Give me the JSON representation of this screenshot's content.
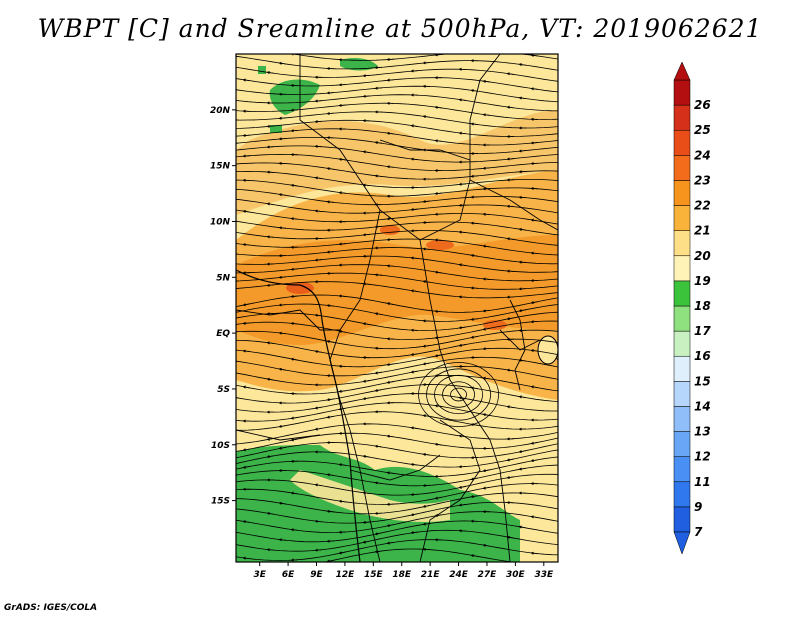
{
  "title": "WBPT [C] and Sreamline at 500hPa, VT: 2019062621",
  "credit": "GrADS: IGES/COLA",
  "map": {
    "lon_labels": [
      "3E",
      "6E",
      "9E",
      "12E",
      "15E",
      "18E",
      "21E",
      "24E",
      "27E",
      "30E",
      "33E"
    ],
    "lat_labels": [
      "20N",
      "15N",
      "10N",
      "5N",
      "EQ",
      "5S",
      "10S",
      "15S"
    ],
    "lon_values": [
      3,
      6,
      9,
      12,
      15,
      18,
      21,
      24,
      27,
      30,
      33
    ],
    "lat_values": [
      20,
      15,
      10,
      5,
      0,
      -5,
      -10,
      -15
    ],
    "lon_range": [
      0.5,
      34.5
    ],
    "lat_range": [
      -20.5,
      25
    ]
  },
  "colorbar": {
    "levels": [
      "7",
      "9",
      "11",
      "12",
      "13",
      "14",
      "15",
      "16",
      "17",
      "18",
      "19",
      "20",
      "21",
      "22",
      "23",
      "24",
      "25",
      "26"
    ],
    "colors": [
      "#1f5fe0",
      "#2f78ee",
      "#4a90f4",
      "#69a6f6",
      "#8fbef8",
      "#b6d6fb",
      "#dff0fc",
      "#c8f0c0",
      "#8fe07e",
      "#3cc33c",
      "#fff3b8",
      "#fddf88",
      "#f9b23a",
      "#f7941e",
      "#f26c1c",
      "#ea4e18",
      "#d5301a",
      "#b30f10"
    ]
  },
  "legend": {
    "color_zones": [
      {
        "value": "17",
        "color": "#3cb34a"
      },
      {
        "value": "18",
        "color": "#fdf0b0"
      },
      {
        "value": "19",
        "color": "#fde48c"
      },
      {
        "value": "20",
        "color": "#f9c35a"
      },
      {
        "value": "21",
        "color": "#f7a430"
      },
      {
        "value": "22",
        "color": "#f08a20"
      }
    ]
  }
}
